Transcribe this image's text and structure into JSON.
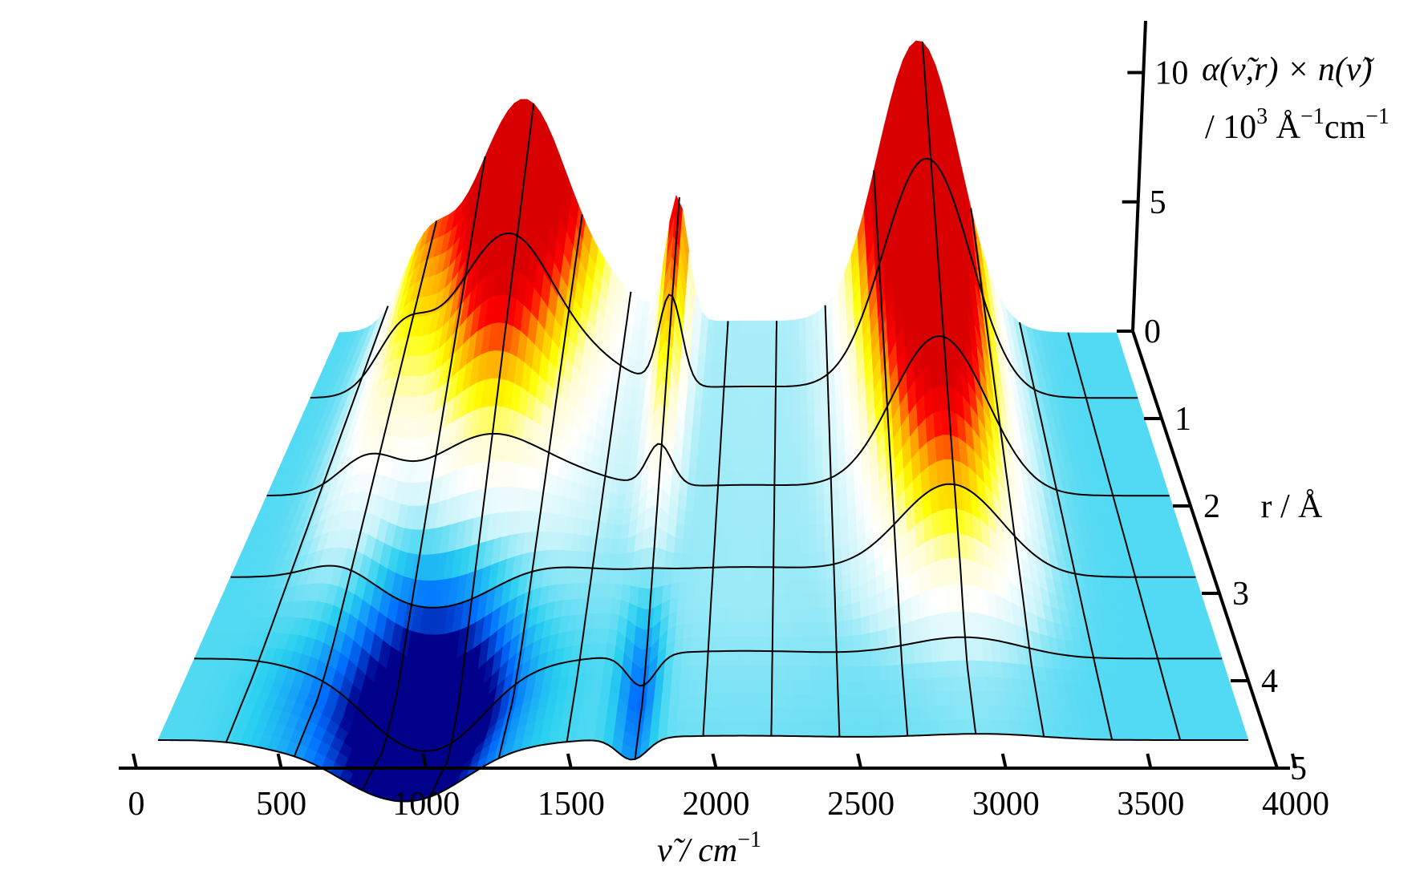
{
  "chart_data": {
    "type": "surface3d",
    "x_axis": {
      "label": "ν̃ / cm",
      "label_sup": "−1",
      "range": [
        0,
        4000
      ],
      "ticks": [
        "0",
        "500",
        "1000",
        "1500",
        "2000",
        "2500",
        "3000",
        "3500",
        "4000"
      ]
    },
    "r_axis": {
      "label": "r / Å",
      "range": [
        0,
        5
      ],
      "ticks": [
        "1",
        "2",
        "3",
        "4",
        "5"
      ]
    },
    "z_axis": {
      "label_line1": "α(ν̃,r) × n(ν̃)",
      "label_line2_prefix": "/ 10",
      "label_line2_sup1": "3",
      "label_line2_mid": " Å",
      "label_line2_sup2": "−1",
      "label_line2_suffix": "cm",
      "label_line2_sup3": "−1",
      "range": [
        0,
        12
      ],
      "ticks": [
        "0",
        "5",
        "10"
      ]
    },
    "colormap": [
      "#00008b",
      "#0070ff",
      "#2ad0f0",
      "#c8f4fa",
      "#ffffff",
      "#fffcd0",
      "#ffff00",
      "#ffa500",
      "#ff0000",
      "#d80000"
    ],
    "peaks": [
      {
        "wavenumber": 450,
        "width": 130,
        "amp_r0": 3.6,
        "amp_r5": -0.6
      },
      {
        "wavenumber": 720,
        "width": 150,
        "amp_r0": 3.0,
        "amp_r5": -2.2
      },
      {
        "wavenumber": 960,
        "width": 180,
        "amp_r0": 6.8,
        "amp_r5": -4.5
      },
      {
        "wavenumber": 1180,
        "width": 260,
        "amp_r0": 3.2,
        "amp_r5": -0.5
      },
      {
        "wavenumber": 1740,
        "width": 55,
        "amp_r0": 5.2,
        "amp_r5": -2.0
      },
      {
        "wavenumber": 2140,
        "width": 420,
        "amp_r0": 0.5,
        "amp_r5": 0.4
      },
      {
        "wavenumber": 2960,
        "width": 200,
        "amp_r0": 11.5,
        "amp_r5": 0.4
      },
      {
        "wavenumber": 3150,
        "width": 160,
        "amp_r0": 1.5,
        "amp_r5": 0.2
      }
    ]
  }
}
